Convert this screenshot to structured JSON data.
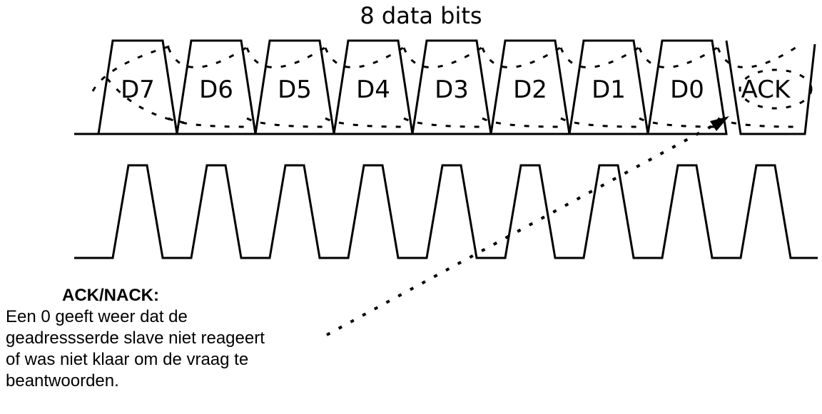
{
  "title": "8 data bits",
  "bits": [
    "D7",
    "D6",
    "D5",
    "D4",
    "D3",
    "D2",
    "D1",
    "D0"
  ],
  "ack_label": "ACK",
  "note": {
    "heading": "ACK/NACK:",
    "lines": [
      "Een 0 geeft weer dat de",
      "geadressserde slave niet reageert",
      "of was niet klaar om de vraag te",
      "beantwoorden."
    ]
  }
}
